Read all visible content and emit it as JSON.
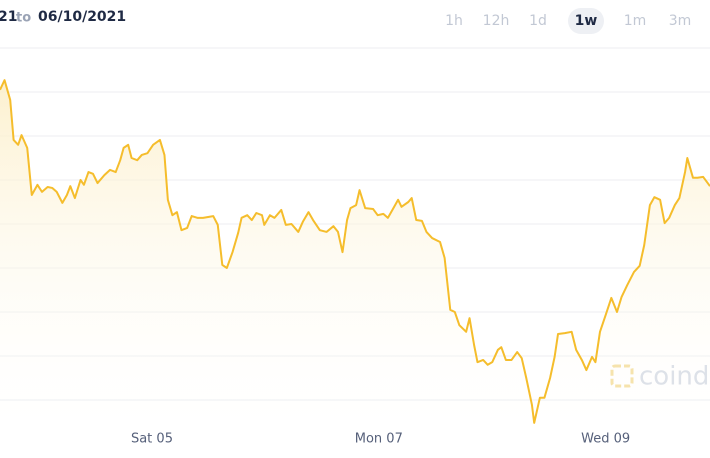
{
  "header": {
    "range_start": "21",
    "range_sep": "to",
    "range_end": "06/10/2021"
  },
  "range_buttons": [
    "1h",
    "12h",
    "1d",
    "1w",
    "1m",
    "3m"
  ],
  "active_range": 3,
  "watermark": "coinde",
  "chart_data": {
    "type": "line",
    "color": "#f5bd2c",
    "grid": true,
    "x": [
      3.66,
      3.7,
      3.75,
      3.78,
      3.82,
      3.85,
      3.9,
      3.94,
      3.99,
      4.03,
      4.08,
      4.12,
      4.16,
      4.21,
      4.25,
      4.28,
      4.32,
      4.37,
      4.4,
      4.44,
      4.48,
      4.52,
      4.58,
      4.63,
      4.68,
      4.72,
      4.75,
      4.79,
      4.82,
      4.87,
      4.91,
      4.96,
      5.01,
      5.07,
      5.11,
      5.14,
      5.18,
      5.22,
      5.26,
      5.31,
      5.35,
      5.4,
      5.45,
      5.54,
      5.58,
      5.62,
      5.66,
      5.71,
      5.76,
      5.79,
      5.84,
      5.88,
      5.92,
      5.97,
      5.99,
      6.04,
      6.08,
      6.14,
      6.18,
      6.23,
      6.29,
      6.33,
      6.38,
      6.42,
      6.48,
      6.54,
      6.6,
      6.64,
      6.68,
      6.72,
      6.75,
      6.8,
      6.83,
      6.88,
      6.95,
      6.99,
      7.04,
      7.08,
      7.12,
      7.17,
      7.2,
      7.26,
      7.29,
      7.33,
      7.38,
      7.42,
      7.47,
      7.54,
      7.58,
      7.63,
      7.67,
      7.71,
      7.77,
      7.8,
      7.84,
      7.87,
      7.92,
      7.96,
      8.0,
      8.05,
      8.08,
      8.12,
      8.17,
      8.22,
      8.26,
      8.3,
      8.35,
      8.37,
      8.42,
      8.46,
      8.51,
      8.55,
      8.58,
      8.64,
      8.7,
      8.74,
      8.79,
      8.83,
      8.88,
      8.91,
      8.95,
      9.0,
      9.05,
      9.1,
      9.14,
      9.19,
      9.25,
      9.3,
      9.34,
      9.39,
      9.43,
      9.48,
      9.52,
      9.56,
      9.61,
      9.65,
      9.7,
      9.72,
      9.77,
      9.81,
      9.86,
      9.92
    ],
    "values": [
      8.05,
      8.27,
      7.82,
      6.91,
      6.8,
      7.02,
      6.73,
      5.66,
      5.89,
      5.73,
      5.84,
      5.82,
      5.73,
      5.48,
      5.66,
      5.86,
      5.59,
      6.0,
      5.89,
      6.18,
      6.14,
      5.93,
      6.11,
      6.23,
      6.18,
      6.45,
      6.73,
      6.8,
      6.5,
      6.45,
      6.57,
      6.61,
      6.8,
      6.91,
      6.57,
      5.55,
      5.2,
      5.27,
      4.86,
      4.91,
      5.18,
      5.14,
      5.14,
      5.18,
      4.98,
      4.07,
      4.0,
      4.36,
      4.8,
      5.14,
      5.2,
      5.09,
      5.25,
      5.2,
      4.98,
      5.2,
      5.14,
      5.32,
      4.98,
      5.0,
      4.82,
      5.05,
      5.27,
      5.09,
      4.86,
      4.82,
      4.95,
      4.82,
      4.36,
      5.09,
      5.36,
      5.43,
      5.77,
      5.36,
      5.34,
      5.2,
      5.23,
      5.14,
      5.32,
      5.55,
      5.39,
      5.5,
      5.59,
      5.09,
      5.07,
      4.82,
      4.68,
      4.59,
      4.23,
      3.05,
      3.0,
      2.7,
      2.55,
      2.86,
      2.25,
      1.86,
      1.91,
      1.8,
      1.86,
      2.14,
      2.2,
      1.91,
      1.91,
      2.09,
      1.95,
      1.5,
      0.89,
      0.48,
      1.05,
      1.05,
      1.5,
      1.98,
      2.5,
      2.52,
      2.55,
      2.14,
      1.91,
      1.68,
      1.98,
      1.86,
      2.55,
      2.93,
      3.32,
      3.0,
      3.34,
      3.61,
      3.91,
      4.05,
      4.52,
      5.43,
      5.61,
      5.55,
      5.02,
      5.14,
      5.43,
      5.59,
      6.18,
      6.5,
      6.05,
      6.05,
      6.07,
      5.86
    ],
    "xlim": [
      3.66,
      9.92
    ],
    "xticks": [
      {
        "value": 5,
        "label": "Sat 05"
      },
      {
        "value": 7,
        "label": "Mon 07"
      },
      {
        "value": 9,
        "label": "Wed 09"
      }
    ],
    "ylim": [
      0,
      9
    ],
    "yticks": [
      1,
      2,
      3,
      4,
      5,
      6,
      7,
      8,
      9
    ]
  }
}
